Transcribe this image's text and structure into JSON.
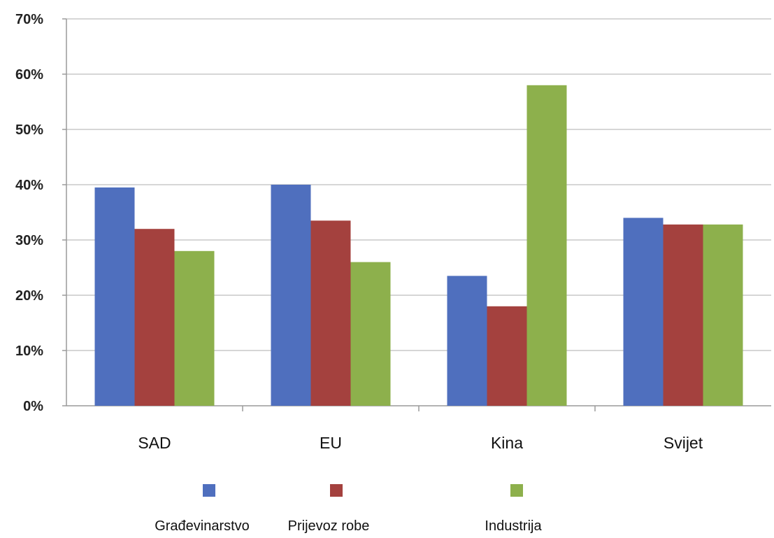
{
  "chart_data": {
    "type": "bar",
    "title": "",
    "xlabel": "",
    "ylabel": "",
    "categories": [
      "SAD",
      "EU",
      "Kina",
      "Svijet"
    ],
    "series": [
      {
        "name": "Građevinarstvo",
        "values": [
          39.5,
          40,
          23.5,
          34
        ]
      },
      {
        "name": "Prijevoz robe",
        "values": [
          32,
          33.5,
          18,
          32.8
        ]
      },
      {
        "name": "Industrija",
        "values": [
          28,
          26,
          58,
          32.8
        ]
      }
    ],
    "ylim": [
      0,
      70
    ],
    "yticks": [
      "0%",
      "10%",
      "20%",
      "30%",
      "40%",
      "50%",
      "60%",
      "70%"
    ],
    "grid": true,
    "legend_position": "bottom",
    "colors": [
      "#4f6fbe",
      "#a4413e",
      "#8db04c"
    ]
  }
}
